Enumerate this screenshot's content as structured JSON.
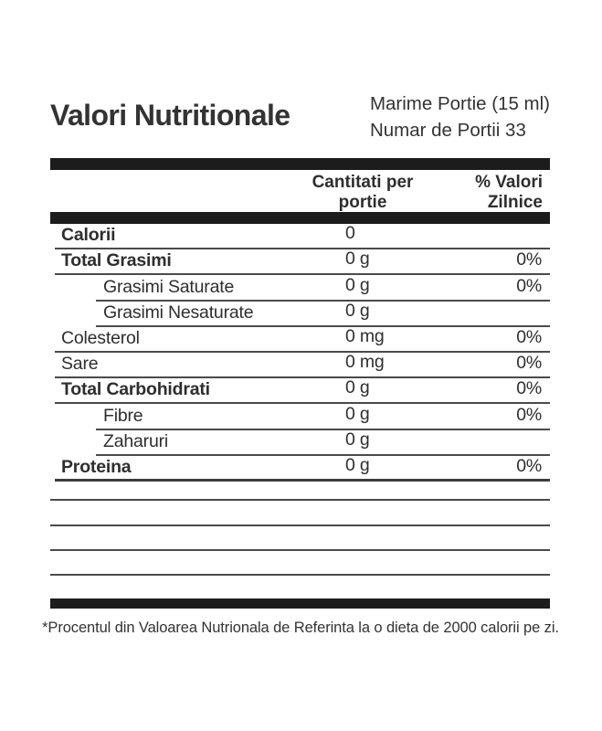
{
  "header": {
    "title": "Valori Nutritionale",
    "serving_size": "Marime Portie (15 ml)",
    "servings_per_container": "Numar de Portii 33"
  },
  "columns": {
    "amount_line1": "Cantitati per",
    "amount_line2": "portie",
    "daily_value_line1": "% Valori",
    "daily_value_line2": "Zilnice"
  },
  "rows": [
    {
      "label": "Calorii",
      "value": "0",
      "dv": ""
    },
    {
      "label": "Total Grasimi",
      "value": "0 g",
      "dv": "0%"
    },
    {
      "label": "Grasimi Saturate",
      "value": "0 g",
      "dv": "0%"
    },
    {
      "label": "Grasimi Nesaturate",
      "value": "0 g",
      "dv": ""
    },
    {
      "label": "Colesterol",
      "value": "0 mg",
      "dv": "0%"
    },
    {
      "label": "Sare",
      "value": "0 mg",
      "dv": "0%"
    },
    {
      "label": "Total Carbohidrati",
      "value": "0 g",
      "dv": "0%"
    },
    {
      "label": "Fibre",
      "value": "0 g",
      "dv": "0%"
    },
    {
      "label": "Zaharuri",
      "value": "0 g",
      "dv": ""
    },
    {
      "label": "Proteina",
      "value": "0 g",
      "dv": "0%"
    }
  ],
  "footnote": "*Procentul din Valoarea Nutrionala de Referinta la o dieta de 2000 calorii pe zi.",
  "colors": {
    "text": "#2e2e2e",
    "bar": "#1c1c1c",
    "rule": "#4a4a4a",
    "background": "#ffffff"
  }
}
